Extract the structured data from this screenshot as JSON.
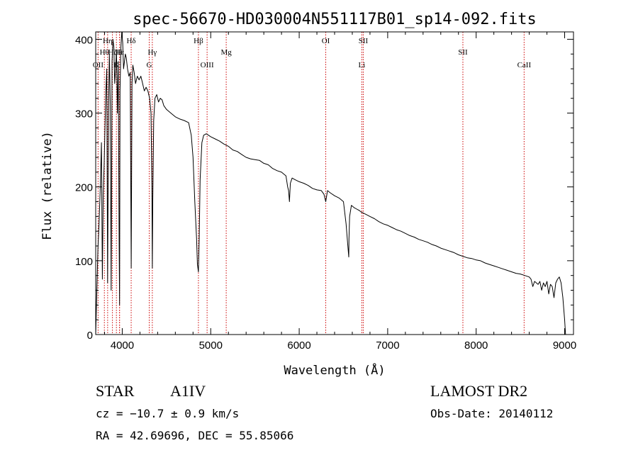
{
  "chart_data": {
    "type": "line",
    "title": "spec-56670-HD030004N551117B01_sp14-092.fits",
    "xlabel": "Wavelength (Å)",
    "ylabel": "Flux (relative)",
    "xlim": [
      3700,
      9100
    ],
    "ylim": [
      0,
      410
    ],
    "x_ticks": [
      4000,
      5000,
      6000,
      7000,
      8000,
      9000
    ],
    "y_ticks": [
      0,
      100,
      200,
      300,
      400
    ],
    "grid": false,
    "legend": "none",
    "line_color": "#000000",
    "marker_line_color": "#cc0000",
    "series": [
      {
        "x": [
          3700,
          3712,
          3725,
          3738,
          3752,
          3765,
          3775,
          3785,
          3795,
          3805,
          3815,
          3825,
          3835,
          3845,
          3855,
          3865,
          3875,
          3885,
          3895,
          3905,
          3915,
          3925,
          3935,
          3945,
          3955,
          3965,
          3970,
          3975,
          3985,
          3995,
          4005,
          4015,
          4025,
          4035,
          4045,
          4060,
          4075,
          4090,
          4101,
          4110,
          4120,
          4135,
          4150,
          4170,
          4190,
          4210,
          4230,
          4250,
          4270,
          4290,
          4310,
          4325,
          4335,
          4340,
          4345,
          4355,
          4370,
          4390,
          4410,
          4430,
          4450,
          4470,
          4500,
          4550,
          4600,
          4650,
          4700,
          4750,
          4780,
          4800,
          4820,
          4840,
          4850,
          4861,
          4870,
          4880,
          4900,
          4920,
          4950,
          5000,
          5050,
          5100,
          5150,
          5200,
          5250,
          5300,
          5350,
          5400,
          5450,
          5500,
          5550,
          5600,
          5650,
          5700,
          5750,
          5800,
          5850,
          5870,
          5880,
          5890,
          5900,
          5920,
          5950,
          6000,
          6050,
          6100,
          6150,
          6200,
          6250,
          6280,
          6300,
          6320,
          6350,
          6400,
          6450,
          6500,
          6530,
          6550,
          6560,
          6563,
          6570,
          6590,
          6620,
          6650,
          6680,
          6700,
          6750,
          6800,
          6850,
          6900,
          6950,
          7000,
          7050,
          7100,
          7150,
          7200,
          7250,
          7300,
          7350,
          7400,
          7450,
          7500,
          7550,
          7600,
          7650,
          7700,
          7750,
          7800,
          7850,
          7900,
          7950,
          8000,
          8050,
          8100,
          8150,
          8200,
          8250,
          8300,
          8350,
          8400,
          8450,
          8500,
          8550,
          8600,
          8620,
          8640,
          8660,
          8680,
          8700,
          8720,
          8740,
          8760,
          8780,
          8800,
          8820,
          8840,
          8860,
          8880,
          8900,
          8920,
          8940,
          8960,
          8980,
          9000,
          9010
        ],
        "y": [
          0,
          55,
          115,
          150,
          200,
          260,
          75,
          190,
          230,
          280,
          330,
          360,
          70,
          300,
          380,
          310,
          60,
          370,
          400,
          390,
          340,
          360,
          385,
          300,
          370,
          120,
          40,
          330,
          390,
          410,
          395,
          360,
          370,
          380,
          375,
          360,
          350,
          355,
          90,
          340,
          365,
          355,
          340,
          350,
          345,
          350,
          340,
          330,
          335,
          330,
          320,
          300,
          200,
          90,
          180,
          290,
          320,
          325,
          315,
          320,
          318,
          310,
          305,
          300,
          295,
          292,
          290,
          287,
          270,
          240,
          180,
          130,
          95,
          85,
          130,
          210,
          260,
          270,
          272,
          268,
          265,
          262,
          258,
          255,
          250,
          248,
          244,
          240,
          238,
          237,
          236,
          232,
          230,
          225,
          222,
          220,
          215,
          200,
          195,
          180,
          205,
          212,
          210,
          207,
          205,
          202,
          198,
          196,
          195,
          190,
          180,
          195,
          192,
          188,
          185,
          180,
          150,
          120,
          105,
          130,
          160,
          175,
          172,
          170,
          168,
          166,
          163,
          160,
          157,
          153,
          150,
          148,
          145,
          142,
          140,
          137,
          134,
          132,
          129,
          127,
          125,
          122,
          120,
          117,
          115,
          113,
          111,
          108,
          106,
          104,
          103,
          101,
          100,
          97,
          95,
          93,
          91,
          89,
          87,
          85,
          83,
          82,
          80,
          78,
          75,
          65,
          72,
          70,
          68,
          72,
          60,
          70,
          65,
          72,
          55,
          68,
          65,
          50,
          70,
          75,
          78,
          70,
          50,
          20,
          0
        ]
      }
    ],
    "line_markers": [
      {
        "x": 3727,
        "label": "OII",
        "row": 3
      },
      {
        "x": 3798,
        "label": "Hθ",
        "row": 1
      },
      {
        "x": 3835,
        "label": "Hη",
        "row": 0
      },
      {
        "x": 3889,
        "label": "Hζ",
        "row": 1
      },
      {
        "x": 3934,
        "label": "K",
        "row": 3
      },
      {
        "x": 3969,
        "label": "H",
        "row": 2
      },
      {
        "x": 3970,
        "label": "Hε",
        "row": 1
      },
      {
        "x": 4101,
        "label": "Hδ",
        "row": 0
      },
      {
        "x": 4305,
        "label": "G",
        "row": 3
      },
      {
        "x": 4340,
        "label": "Hγ",
        "row": 1
      },
      {
        "x": 4861,
        "label": "Hβ",
        "row": 0
      },
      {
        "x": 4959,
        "label": "OIII",
        "row": 3
      },
      {
        "x": 5175,
        "label": "Mg",
        "row": 1
      },
      {
        "x": 6300,
        "label": "OI",
        "row": 0
      },
      {
        "x": 6708,
        "label": "Li",
        "row": 3
      },
      {
        "x": 6724,
        "label": "SII",
        "row": 0
      },
      {
        "x": 7850,
        "label": "SII",
        "row": 1
      },
      {
        "x": 8542,
        "label": "CaII",
        "row": 3
      }
    ]
  },
  "info": {
    "class_label": "STAR",
    "subclass": "A1IV",
    "survey": "LAMOST DR2",
    "cz": "cz = −10.7 ± 0.9 km/s",
    "obs_date": "Obs-Date: 20140112",
    "coords": "RA =  42.69696, DEC =  55.85066"
  }
}
